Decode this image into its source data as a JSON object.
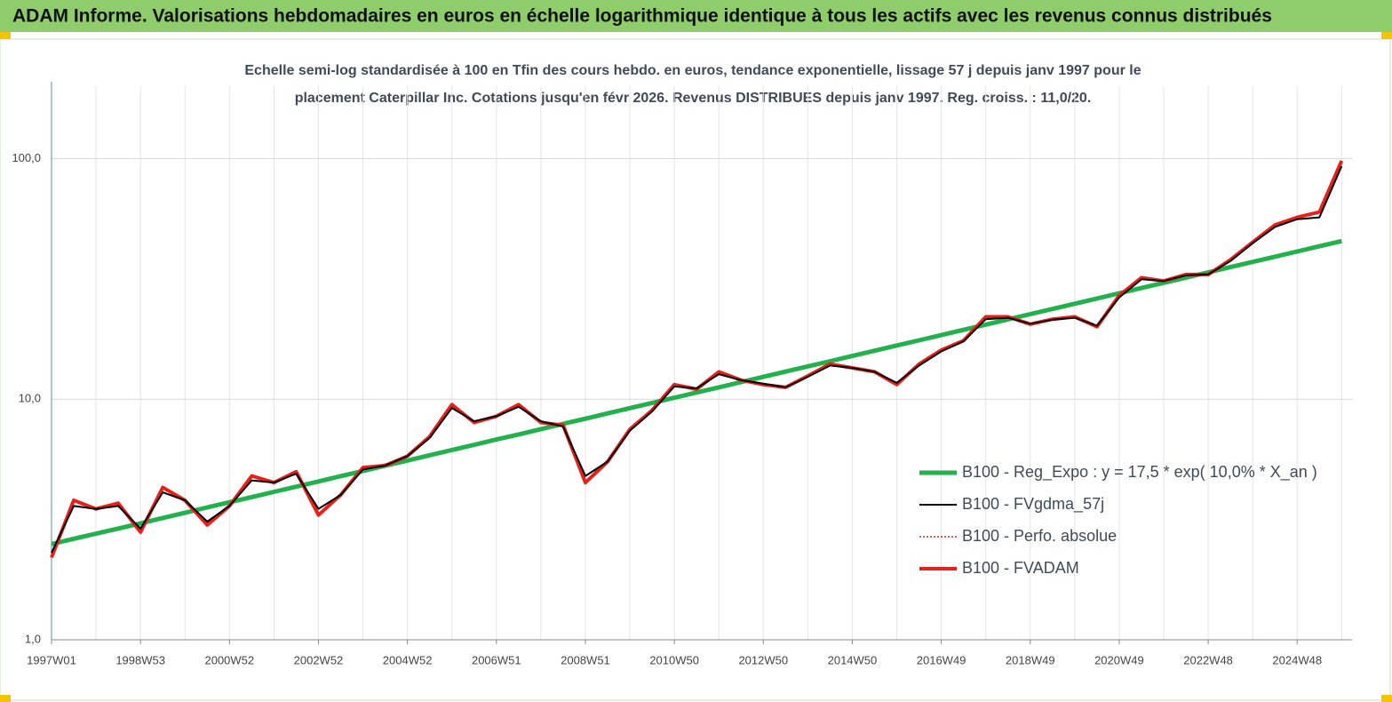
{
  "chart_data": {
    "type": "line",
    "title": "ADAM Informe. Valorisations hebdomadaires en euros en échelle logarithmique identique à tous les actifs avec les revenus connus distribués",
    "subtitle": [
      "Echelle semi-log standardisée à 100 en Tfin des cours hebdo. en euros, tendance exponentielle, lissage 57 j depuis janv 1997 pour le",
      "placement Caterpillar Inc.  Cotations jusqu'en févr 2026. Revenus DISTRIBUES depuis janv 1997. Reg. croiss. : 11,0/20."
    ],
    "categories": [
      "1997W01",
      null,
      null,
      null,
      "1998W53",
      null,
      null,
      null,
      "2000W52",
      null,
      null,
      null,
      "2002W52",
      null,
      null,
      null,
      "2004W52",
      null,
      null,
      null,
      "2006W51",
      null,
      null,
      null,
      "2008W51",
      null,
      null,
      null,
      "2010W50",
      null,
      null,
      null,
      "2012W50",
      null,
      null,
      null,
      "2014W50",
      null,
      null,
      null,
      "2016W49",
      null,
      null,
      null,
      "2018W49",
      null,
      null,
      null,
      "2020W49",
      null,
      null,
      null,
      "2022W48",
      null,
      null,
      null,
      "2024W48",
      null,
      null
    ],
    "log_scale": true,
    "ylim": [
      1,
      200
    ],
    "yticks": [
      {
        "value": 1,
        "label": "1,0"
      },
      {
        "value": 10,
        "label": "10,0"
      },
      {
        "value": 100,
        "label": "100,0"
      }
    ],
    "grid": true,
    "legend": "lower right",
    "series": [
      {
        "name": "B100 - Reg_Expo : y = 17,5 * exp( 10,0% *  X_an )",
        "color": "#22b14c",
        "width": 5,
        "dash": "none",
        "values": [
          2.5,
          2.63,
          2.76,
          2.9,
          3.05,
          3.21,
          3.37,
          3.55,
          3.73,
          3.92,
          4.12,
          4.33,
          4.55,
          4.79,
          5.03,
          5.29,
          5.56,
          5.85,
          6.15,
          6.46,
          6.8,
          7.14,
          7.51,
          7.9,
          8.3,
          8.73,
          9.18,
          9.65,
          10.14,
          10.66,
          11.2,
          11.78,
          12.38,
          13.02,
          13.69,
          14.39,
          15.12,
          15.9,
          16.72,
          17.57,
          18.47,
          19.42,
          20.42,
          21.47,
          22.57,
          23.72,
          24.94,
          26.22,
          27.56,
          28.98,
          30.46,
          32.02,
          33.67,
          35.39,
          37.21,
          39.11,
          41.12,
          43.23,
          45.44
        ]
      },
      {
        "name": "B100 - FVgdma_57j",
        "color": "#000000",
        "width": 2,
        "dash": "none",
        "values": [
          2.3,
          3.6,
          3.5,
          3.6,
          2.9,
          4.1,
          3.8,
          3.1,
          3.6,
          4.6,
          4.5,
          4.9,
          3.5,
          4.0,
          5.1,
          5.3,
          5.8,
          6.9,
          9.2,
          8.1,
          8.5,
          9.3,
          8.1,
          7.7,
          4.8,
          5.5,
          7.4,
          8.9,
          11.3,
          11.1,
          12.7,
          12.0,
          11.6,
          11.2,
          12.4,
          13.8,
          13.5,
          13.0,
          11.7,
          13.8,
          15.8,
          17.4,
          21.5,
          21.8,
          20.6,
          21.4,
          21.8,
          20.2,
          26.5,
          31.5,
          31.0,
          32.7,
          33.0,
          37.5,
          44.5,
          52.0,
          56.0,
          57.0,
          93.0
        ]
      },
      {
        "name": "B100 - Perfo. absolue",
        "color": "#e8201a",
        "width": 1.5,
        "dash": "2,2",
        "values": [
          2.2,
          3.8,
          3.5,
          3.7,
          2.8,
          4.3,
          3.8,
          3.0,
          3.6,
          4.8,
          4.5,
          5.0,
          3.3,
          4.0,
          5.2,
          5.3,
          5.8,
          7.0,
          9.5,
          8.0,
          8.5,
          9.5,
          8.0,
          7.8,
          4.5,
          5.5,
          7.5,
          9.0,
          11.5,
          11.0,
          13.0,
          12.0,
          11.5,
          11.2,
          12.5,
          14.0,
          13.5,
          13.0,
          11.5,
          14.0,
          16.0,
          17.5,
          22.0,
          22.0,
          20.5,
          21.5,
          22.0,
          20.0,
          27.0,
          32.0,
          31.0,
          33.0,
          33.0,
          38.0,
          45.0,
          53.0,
          57.0,
          60.0,
          98.0
        ]
      },
      {
        "name": "B100 - FVADAM",
        "color": "#e8201a",
        "width": 4,
        "dash": "none",
        "values": [
          2.2,
          3.8,
          3.5,
          3.7,
          2.8,
          4.3,
          3.8,
          3.0,
          3.6,
          4.8,
          4.5,
          5.0,
          3.3,
          4.0,
          5.2,
          5.3,
          5.8,
          7.0,
          9.5,
          8.0,
          8.5,
          9.5,
          8.0,
          7.8,
          4.5,
          5.5,
          7.5,
          9.0,
          11.5,
          11.0,
          13.0,
          12.0,
          11.5,
          11.2,
          12.5,
          14.0,
          13.5,
          13.0,
          11.5,
          14.0,
          16.0,
          17.5,
          22.0,
          22.0,
          20.5,
          21.5,
          22.0,
          20.0,
          27.0,
          32.0,
          31.0,
          33.0,
          33.0,
          38.0,
          45.0,
          53.0,
          57.0,
          60.0,
          98.0
        ]
      }
    ]
  }
}
